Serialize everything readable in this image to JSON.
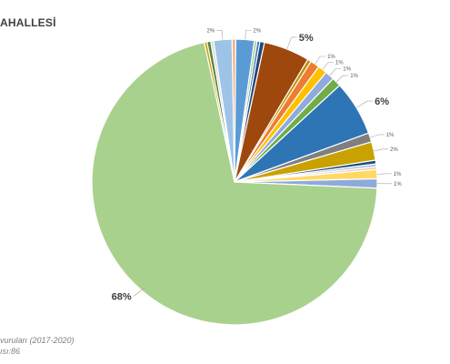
{
  "chart_data": {
    "type": "pie",
    "title": "AHALLESİ",
    "slices": [
      {
        "label": "",
        "value": 2,
        "display": "2%",
        "color": "#9dc3e6"
      },
      {
        "label": "",
        "value": 0.4,
        "display": "",
        "color": "#f4b183"
      },
      {
        "label": "",
        "value": 2,
        "display": "2%",
        "color": "#5b9bd5"
      },
      {
        "label": "",
        "value": 0.3,
        "display": "",
        "color": "#a9d18e"
      },
      {
        "label": "",
        "value": 0.3,
        "display": "",
        "color": "#2e75b6"
      },
      {
        "label": "",
        "value": 0.5,
        "display": "",
        "color": "#264478"
      },
      {
        "label": "",
        "value": 5,
        "display": "5%",
        "color": "#9e480e"
      },
      {
        "label": "",
        "value": 0.4,
        "display": "",
        "color": "#bf9000"
      },
      {
        "label": "",
        "value": 1,
        "display": "1%",
        "color": "#ed7d31"
      },
      {
        "label": "",
        "value": 1,
        "display": "1%",
        "color": "#ffc000"
      },
      {
        "label": "",
        "value": 1,
        "display": "1%",
        "color": "#8faadc"
      },
      {
        "label": "",
        "value": 1,
        "display": "1%",
        "color": "#70ad47"
      },
      {
        "label": "",
        "value": 6,
        "display": "6%",
        "color": "#2e75b6"
      },
      {
        "label": "",
        "value": 1,
        "display": "1%",
        "color": "#7f7f7f"
      },
      {
        "label": "",
        "value": 2,
        "display": "2%",
        "color": "#c9a100"
      },
      {
        "label": "",
        "value": 0.4,
        "display": "",
        "color": "#1f4e79"
      },
      {
        "label": "",
        "value": 0.3,
        "display": "",
        "color": "#9dc3e6"
      },
      {
        "label": "",
        "value": 0.3,
        "display": "",
        "color": "#f8cbad"
      },
      {
        "label": "",
        "value": 1,
        "display": "1%",
        "color": "#ffd966"
      },
      {
        "label": "",
        "value": 1,
        "display": "1%",
        "color": "#8eaadb"
      },
      {
        "label": "",
        "value": 68,
        "display": "68%",
        "color": "#a9d18e"
      },
      {
        "label": "",
        "value": 0.3,
        "display": "",
        "color": "#c9a100"
      },
      {
        "label": "",
        "value": 0.4,
        "display": "",
        "color": "#548235"
      },
      {
        "label": "",
        "value": 0.3,
        "display": "",
        "color": "#d9d9d9"
      }
    ]
  },
  "source_note": {
    "line1": "vuruları (2017-2020)",
    "line2": "ısı:86"
  }
}
